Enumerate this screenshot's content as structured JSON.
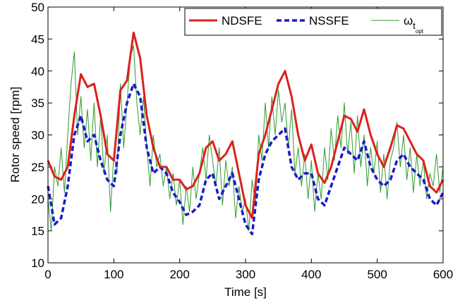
{
  "chart_data": {
    "type": "line",
    "xlabel": "Time [s]",
    "ylabel": "Rotor speed [rpm]",
    "xlim": [
      0,
      600
    ],
    "xticks": [
      0,
      100,
      200,
      300,
      400,
      500,
      600
    ],
    "ylim": [
      10,
      50
    ],
    "yticks": [
      10,
      15,
      20,
      25,
      30,
      35,
      40,
      45,
      50
    ],
    "grid": false,
    "legend": "upper right",
    "series": [
      {
        "name": "NDSFE",
        "color": "#d9221c",
        "style": "solid",
        "x": [
          0,
          10,
          20,
          30,
          40,
          50,
          60,
          70,
          80,
          90,
          100,
          110,
          120,
          130,
          140,
          150,
          160,
          170,
          180,
          190,
          200,
          210,
          220,
          230,
          240,
          250,
          260,
          270,
          280,
          290,
          300,
          310,
          320,
          330,
          340,
          350,
          360,
          370,
          380,
          390,
          400,
          410,
          420,
          430,
          440,
          450,
          460,
          470,
          480,
          490,
          500,
          510,
          520,
          530,
          540,
          550,
          560,
          570,
          580,
          590,
          600
        ],
        "values": [
          26,
          23.5,
          23,
          25,
          33,
          39.5,
          37.5,
          38,
          33,
          27,
          26,
          37,
          38.5,
          46,
          42,
          33,
          28,
          25,
          25,
          23,
          23,
          21.5,
          22,
          24,
          28,
          29,
          26,
          27,
          29,
          24,
          19,
          17,
          27,
          30,
          34,
          38,
          40,
          36,
          30,
          26,
          28.5,
          24,
          22.5,
          25,
          29,
          33,
          32.5,
          30.5,
          34,
          30,
          27,
          25,
          28,
          31.5,
          31,
          29,
          27,
          26,
          22,
          21,
          23
        ]
      },
      {
        "name": "NSSFE",
        "color": "#1a1acc",
        "style": "dashed",
        "x": [
          0,
          10,
          20,
          30,
          40,
          50,
          60,
          70,
          80,
          90,
          100,
          110,
          120,
          130,
          140,
          150,
          160,
          170,
          180,
          190,
          200,
          210,
          220,
          230,
          240,
          250,
          260,
          270,
          280,
          290,
          300,
          310,
          320,
          330,
          340,
          350,
          360,
          370,
          380,
          390,
          400,
          410,
          420,
          430,
          440,
          450,
          460,
          470,
          480,
          490,
          500,
          510,
          520,
          530,
          540,
          550,
          560,
          570,
          580,
          590,
          600
        ],
        "values": [
          22,
          16,
          17,
          22,
          30,
          33,
          29,
          30,
          26,
          23,
          22,
          30,
          35,
          38,
          36,
          28,
          24,
          25,
          24,
          21,
          19.5,
          17.5,
          18,
          19,
          23,
          24,
          20,
          22,
          24,
          20,
          16,
          14.5,
          23,
          27,
          29,
          30,
          31,
          25,
          23,
          24,
          24,
          20,
          19,
          22,
          25,
          28,
          27,
          26,
          29,
          25,
          23,
          22,
          23,
          26,
          27,
          25,
          24,
          23,
          20,
          19,
          21
        ]
      },
      {
        "name": "ω",
        "name_sub": "t",
        "name_subsub": "opt",
        "color": "#2f9a2f",
        "style": "thin",
        "x": [
          0,
          5,
          10,
          15,
          20,
          25,
          30,
          35,
          40,
          45,
          50,
          55,
          60,
          65,
          70,
          75,
          80,
          85,
          90,
          95,
          100,
          105,
          110,
          115,
          120,
          125,
          130,
          135,
          140,
          145,
          150,
          155,
          160,
          165,
          170,
          175,
          180,
          185,
          190,
          195,
          200,
          205,
          210,
          215,
          220,
          225,
          230,
          235,
          240,
          245,
          250,
          255,
          260,
          265,
          270,
          275,
          280,
          285,
          290,
          295,
          300,
          305,
          310,
          315,
          320,
          325,
          330,
          335,
          340,
          345,
          350,
          355,
          360,
          365,
          370,
          375,
          380,
          385,
          390,
          395,
          400,
          405,
          410,
          415,
          420,
          425,
          430,
          435,
          440,
          445,
          450,
          455,
          460,
          465,
          470,
          475,
          480,
          485,
          490,
          495,
          500,
          505,
          510,
          515,
          520,
          525,
          530,
          535,
          540,
          545,
          550,
          555,
          560,
          565,
          570,
          575,
          580,
          585,
          590,
          595,
          600
        ],
        "values": [
          20,
          15,
          25,
          22,
          28,
          21,
          30,
          38,
          43,
          30,
          36,
          28,
          34,
          26,
          35,
          25,
          33,
          24,
          30,
          18,
          27,
          24,
          38,
          28,
          35,
          42,
          44,
          35,
          30,
          36,
          28,
          22,
          30,
          25,
          27,
          22,
          25,
          20,
          24,
          19,
          23,
          16,
          22,
          18,
          25,
          20,
          24,
          28,
          23,
          30,
          26,
          22,
          28,
          19,
          26,
          22,
          25,
          17,
          22,
          18,
          20,
          15,
          23,
          19,
          30,
          26,
          35,
          28,
          36,
          30,
          37,
          32,
          35,
          28,
          34,
          24,
          28,
          22,
          27,
          20,
          26,
          18,
          24,
          20,
          28,
          23,
          31,
          26,
          33,
          28,
          35,
          27,
          32,
          24,
          33,
          25,
          30,
          22,
          28,
          24,
          29,
          21,
          27,
          20,
          26,
          28,
          32,
          25,
          30,
          23,
          28,
          21,
          27,
          22,
          26,
          20,
          24,
          22,
          27,
          21,
          25
        ]
      }
    ]
  }
}
